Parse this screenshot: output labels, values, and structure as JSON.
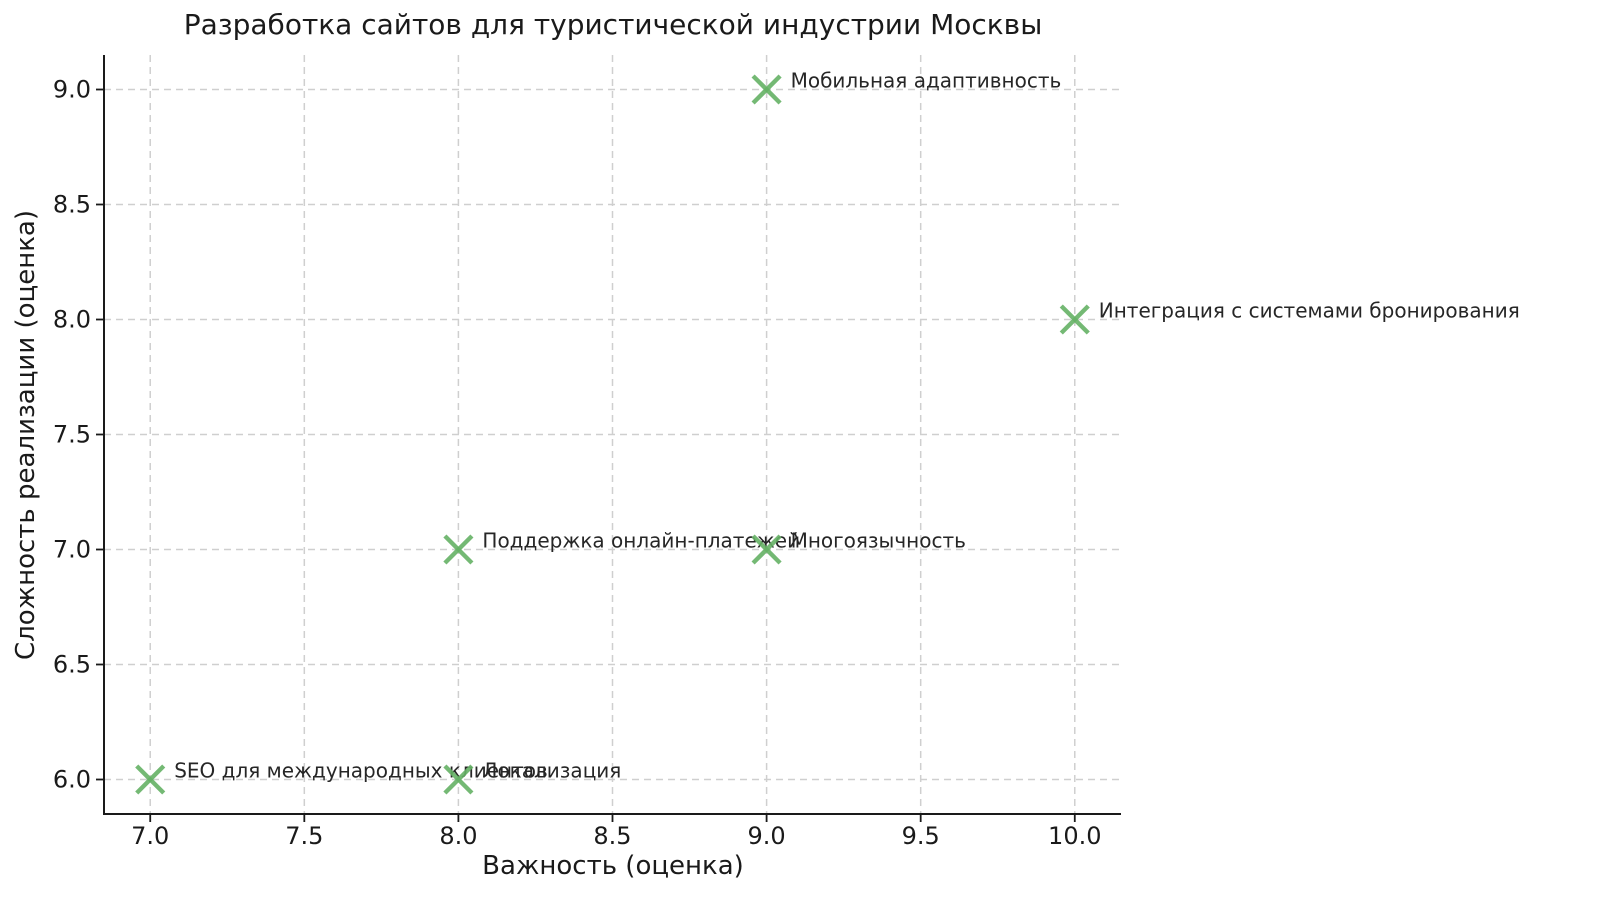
{
  "figure": {
    "background": "#ffffff",
    "text_color": "#1a1a1a",
    "annotation_color": "#262626",
    "grid_color": "#cfcfcf",
    "spine_color": "#1a1a1a",
    "tick_color": "#1a1a1a"
  },
  "chart_data": {
    "type": "scatter",
    "title": "Разработка сайтов для туристической индустрии Москвы",
    "xlabel": "Важность (оценка)",
    "ylabel": "Сложность реализации (оценка)",
    "marker": "x",
    "marker_color": "#66b266",
    "grid": true,
    "grid_style": "dashed",
    "legend_position": "none",
    "xlim": [
      6.85,
      10.15
    ],
    "ylim": [
      5.85,
      9.15
    ],
    "x_ticks": [
      7.0,
      7.5,
      8.0,
      8.5,
      9.0,
      9.5,
      10.0
    ],
    "x_tick_labels": [
      "7.0",
      "7.5",
      "8.0",
      "8.5",
      "9.0",
      "9.5",
      "10.0"
    ],
    "y_ticks": [
      6.0,
      6.5,
      7.0,
      7.5,
      8.0,
      8.5,
      9.0
    ],
    "y_tick_labels": [
      "6.0",
      "6.5",
      "7.0",
      "7.5",
      "8.0",
      "8.5",
      "9.0"
    ],
    "points": [
      {
        "x": 9,
        "y": 9,
        "label": "Мобильная адаптивность"
      },
      {
        "x": 10,
        "y": 8,
        "label": "Интеграция с системами бронирования"
      },
      {
        "x": 8,
        "y": 7,
        "label": "Поддержка онлайн-платежей"
      },
      {
        "x": 9,
        "y": 7,
        "label": "Многоязычность"
      },
      {
        "x": 7,
        "y": 6,
        "label": "SEO для международных клиентов"
      },
      {
        "x": 8,
        "y": 6,
        "label": "Локализация"
      }
    ]
  }
}
